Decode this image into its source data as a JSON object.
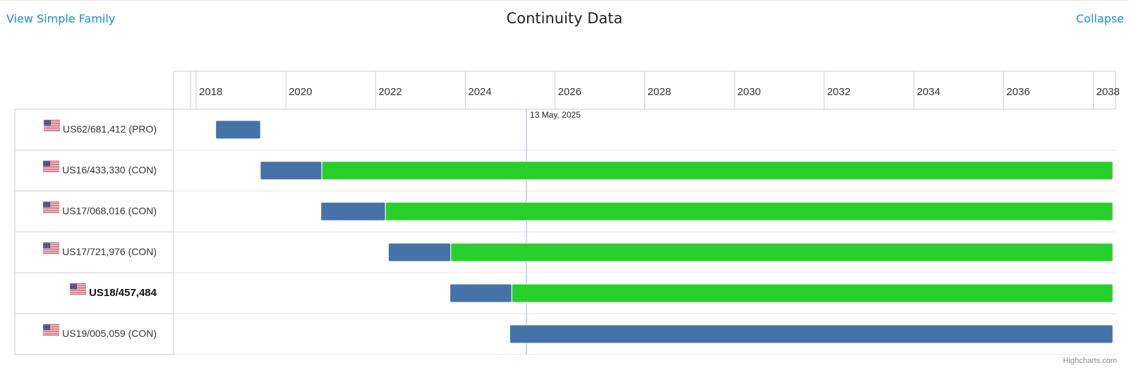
{
  "header": {
    "left_link": "View Simple Family",
    "title": "Continuity Data",
    "right_link": "Collapse"
  },
  "chart_data": {
    "type": "gantt",
    "title": "Continuity Data",
    "x_axis": {
      "type": "datetime",
      "range": [
        "2017-07-01",
        "2038-07-01"
      ],
      "tick_labels": [
        "2018",
        "2020",
        "2022",
        "2024",
        "2026",
        "2028",
        "2030",
        "2032",
        "2034",
        "2036",
        "2038"
      ]
    },
    "current_date_line": {
      "date": "2025-05-13",
      "label": "13 May, 2025"
    },
    "rows": [
      {
        "label": "US62/681,412 (PRO)",
        "bold": false,
        "flag": "us-flag-icon",
        "segments": [
          {
            "start": "2018-06-09",
            "end": "2019-06-09",
            "status": "pending"
          }
        ]
      },
      {
        "label": "US16/433,330 (CON)",
        "bold": false,
        "flag": "us-flag-icon",
        "segments": [
          {
            "start": "2019-06-07",
            "end": "2020-10-20",
            "status": "pending"
          },
          {
            "start": "2020-10-20",
            "end": "2038-06-09",
            "status": "granted"
          }
        ]
      },
      {
        "label": "US17/068,016 (CON)",
        "bold": false,
        "flag": "us-flag-icon",
        "segments": [
          {
            "start": "2020-10-12",
            "end": "2022-03-22",
            "status": "pending"
          },
          {
            "start": "2022-03-22",
            "end": "2038-06-09",
            "status": "granted"
          }
        ]
      },
      {
        "label": "US17/721,976 (CON)",
        "bold": false,
        "flag": "us-flag-icon",
        "segments": [
          {
            "start": "2022-04-15",
            "end": "2023-09-05",
            "status": "pending"
          },
          {
            "start": "2023-09-05",
            "end": "2038-06-09",
            "status": "granted"
          }
        ]
      },
      {
        "label": "US18/457,484",
        "bold": true,
        "flag": "us-flag-icon",
        "segments": [
          {
            "start": "2023-08-29",
            "end": "2025-01-14",
            "status": "pending"
          },
          {
            "start": "2025-01-14",
            "end": "2038-06-09",
            "status": "granted"
          }
        ]
      },
      {
        "label": "US19/005,059 (CON)",
        "bold": false,
        "flag": "us-flag-icon",
        "segments": [
          {
            "start": "2024-12-28",
            "end": "2038-06-09",
            "status": "pending"
          }
        ]
      }
    ],
    "colors": {
      "pending": "#4572a7",
      "granted": "#28cf2b",
      "current_line": "#c9d6f0"
    },
    "credits": "Highcharts.com"
  }
}
